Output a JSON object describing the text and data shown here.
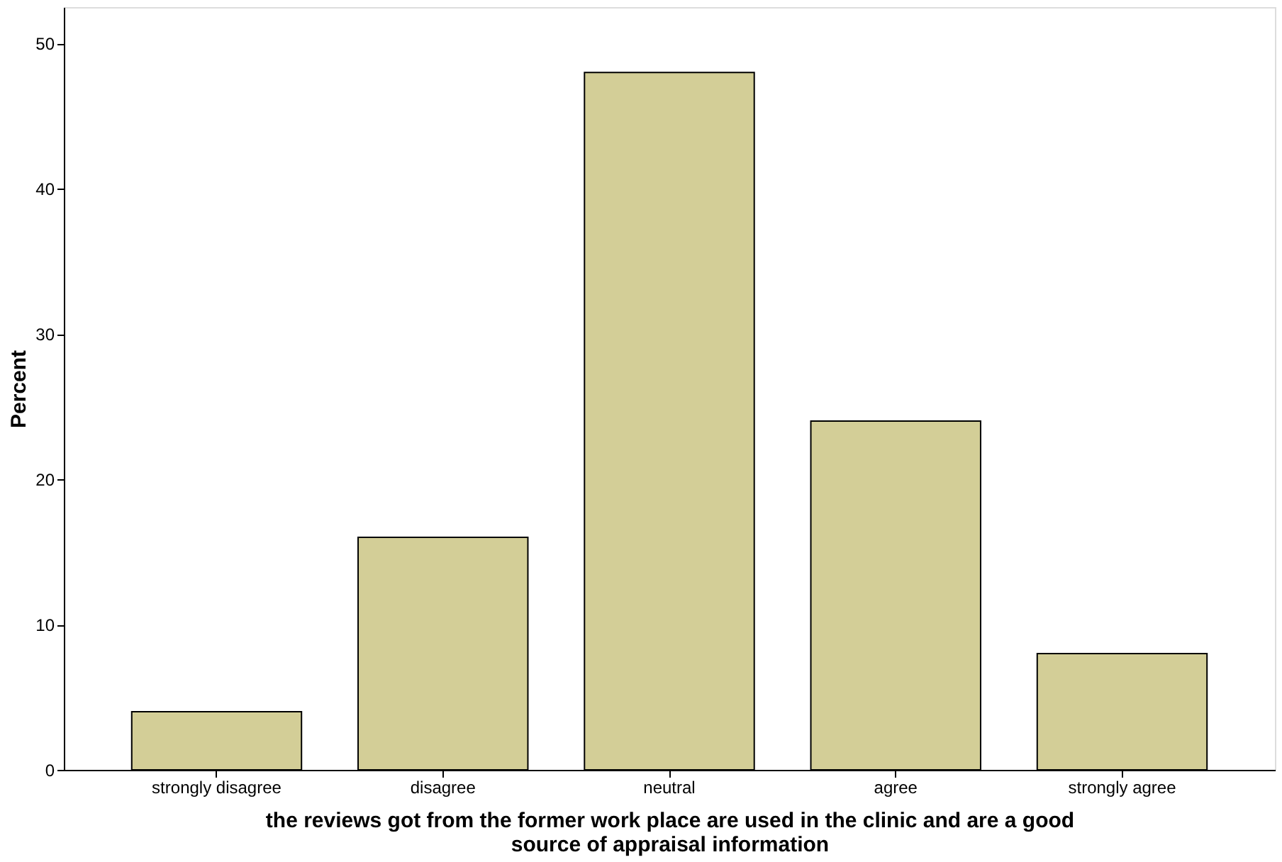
{
  "chart_data": {
    "type": "bar",
    "categories": [
      "strongly disagree",
      "disagree",
      "neutral",
      "agree",
      "strongly agree"
    ],
    "values": [
      4,
      16,
      48,
      24,
      8
    ],
    "color": "#d3ce97",
    "xlabel": "the reviews got from the former work place are used in the clinic and are a good source of appraisal information",
    "ylabel": "Percent",
    "ylim": [
      0,
      52.5
    ],
    "yticks": [
      0,
      10,
      20,
      30,
      40,
      50
    ],
    "grid": false
  }
}
